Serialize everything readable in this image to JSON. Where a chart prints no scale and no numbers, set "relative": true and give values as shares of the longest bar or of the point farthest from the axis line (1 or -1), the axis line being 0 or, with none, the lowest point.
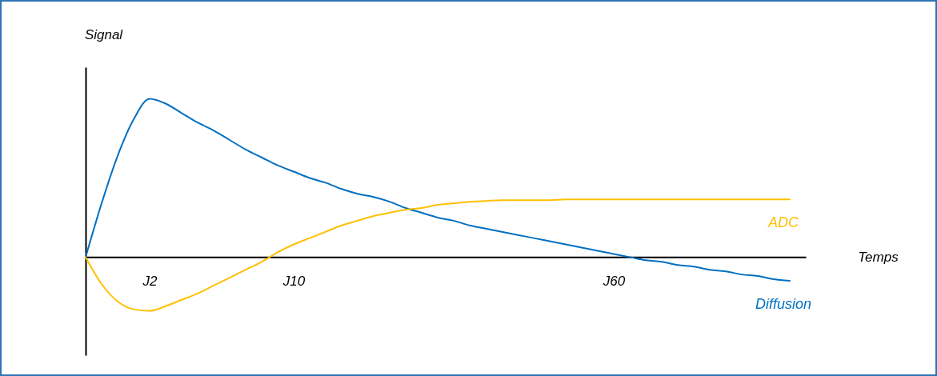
{
  "chart_data": {
    "type": "line",
    "relative": true,
    "xlabel": "Temps",
    "ylabel": "Signal",
    "categories": [
      null,
      null,
      null,
      null,
      "J2",
      null,
      null,
      null,
      null,
      null,
      null,
      null,
      null,
      "J10",
      null,
      null,
      null,
      null,
      null,
      null,
      null,
      null,
      null,
      null,
      null,
      null,
      null,
      null,
      null,
      null,
      null,
      null,
      null,
      "J60",
      null,
      null,
      null,
      null,
      null,
      null,
      null,
      null,
      null,
      null,
      null
    ],
    "series": [
      {
        "name": "Diffusion",
        "color": "#0070c0",
        "values": [
          0,
          0.34,
          0.64,
          0.87,
          1,
          0.97,
          0.91,
          0.85,
          0.8,
          0.74,
          0.68,
          0.63,
          0.58,
          0.54,
          0.5,
          0.47,
          0.43,
          0.4,
          0.38,
          0.35,
          0.31,
          0.28,
          0.25,
          0.23,
          0.2,
          0.18,
          0.16,
          0.14,
          0.12,
          0.1,
          0.08,
          0.06,
          0.04,
          0.02,
          0,
          -0.02,
          -0.03,
          -0.05,
          -0.06,
          -0.08,
          -0.09,
          -0.11,
          -0.12,
          -0.14,
          -0.15
        ]
      },
      {
        "name": "ADC",
        "color": "#ffc000",
        "values": [
          0,
          -0.17,
          -0.28,
          -0.33,
          -0.34,
          -0.31,
          -0.27,
          -0.23,
          -0.18,
          -0.13,
          -0.08,
          -0.03,
          0.03,
          0.08,
          0.12,
          0.16,
          0.2,
          0.23,
          0.26,
          0.28,
          0.3,
          0.31,
          0.33,
          0.34,
          0.35,
          0.355,
          0.36,
          0.36,
          0.36,
          0.36,
          0.365,
          0.365,
          0.365,
          0.365,
          0.365,
          0.365,
          0.365,
          0.365,
          0.365,
          0.365,
          0.365,
          0.365,
          0.365,
          0.365,
          0.365
        ]
      }
    ]
  }
}
